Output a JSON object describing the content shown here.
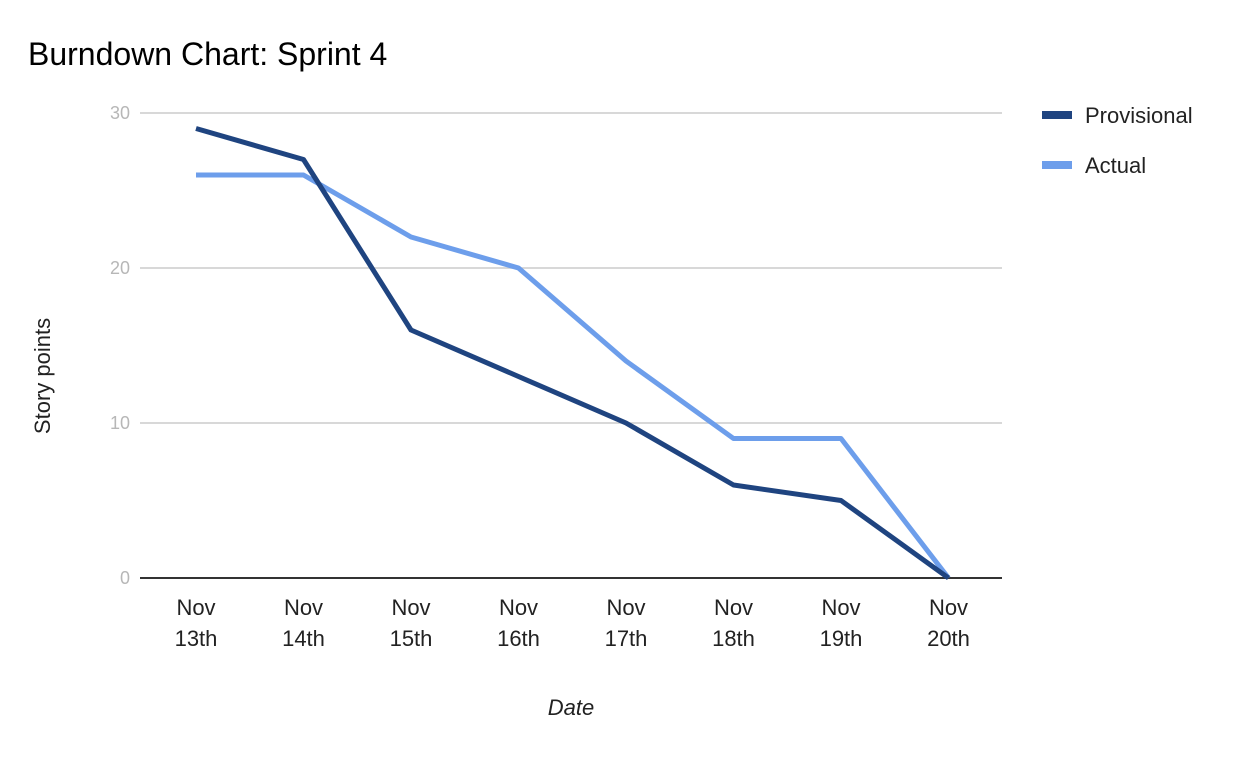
{
  "chart_data": {
    "type": "line",
    "title": "Burndown Chart: Sprint 4",
    "xlabel": "Date",
    "ylabel": "Story points",
    "categories": [
      [
        "Nov",
        "13th"
      ],
      [
        "Nov",
        "14th"
      ],
      [
        "Nov",
        "15th"
      ],
      [
        "Nov",
        "16th"
      ],
      [
        "Nov",
        "17th"
      ],
      [
        "Nov",
        "18th"
      ],
      [
        "Nov",
        "19th"
      ],
      [
        "Nov",
        "20th"
      ]
    ],
    "yticks": [
      "0",
      "10",
      "20",
      "30"
    ],
    "ylim": [
      0,
      30
    ],
    "grid": true,
    "legend_position": "right",
    "series": [
      {
        "name": "Provisional",
        "color": "#1f4480",
        "values": [
          29,
          27,
          16,
          13,
          10,
          6,
          5,
          0
        ]
      },
      {
        "name": "Actual",
        "color": "#6d9eeb",
        "values": [
          26,
          26,
          22,
          20,
          14,
          9,
          9,
          0
        ]
      }
    ]
  }
}
